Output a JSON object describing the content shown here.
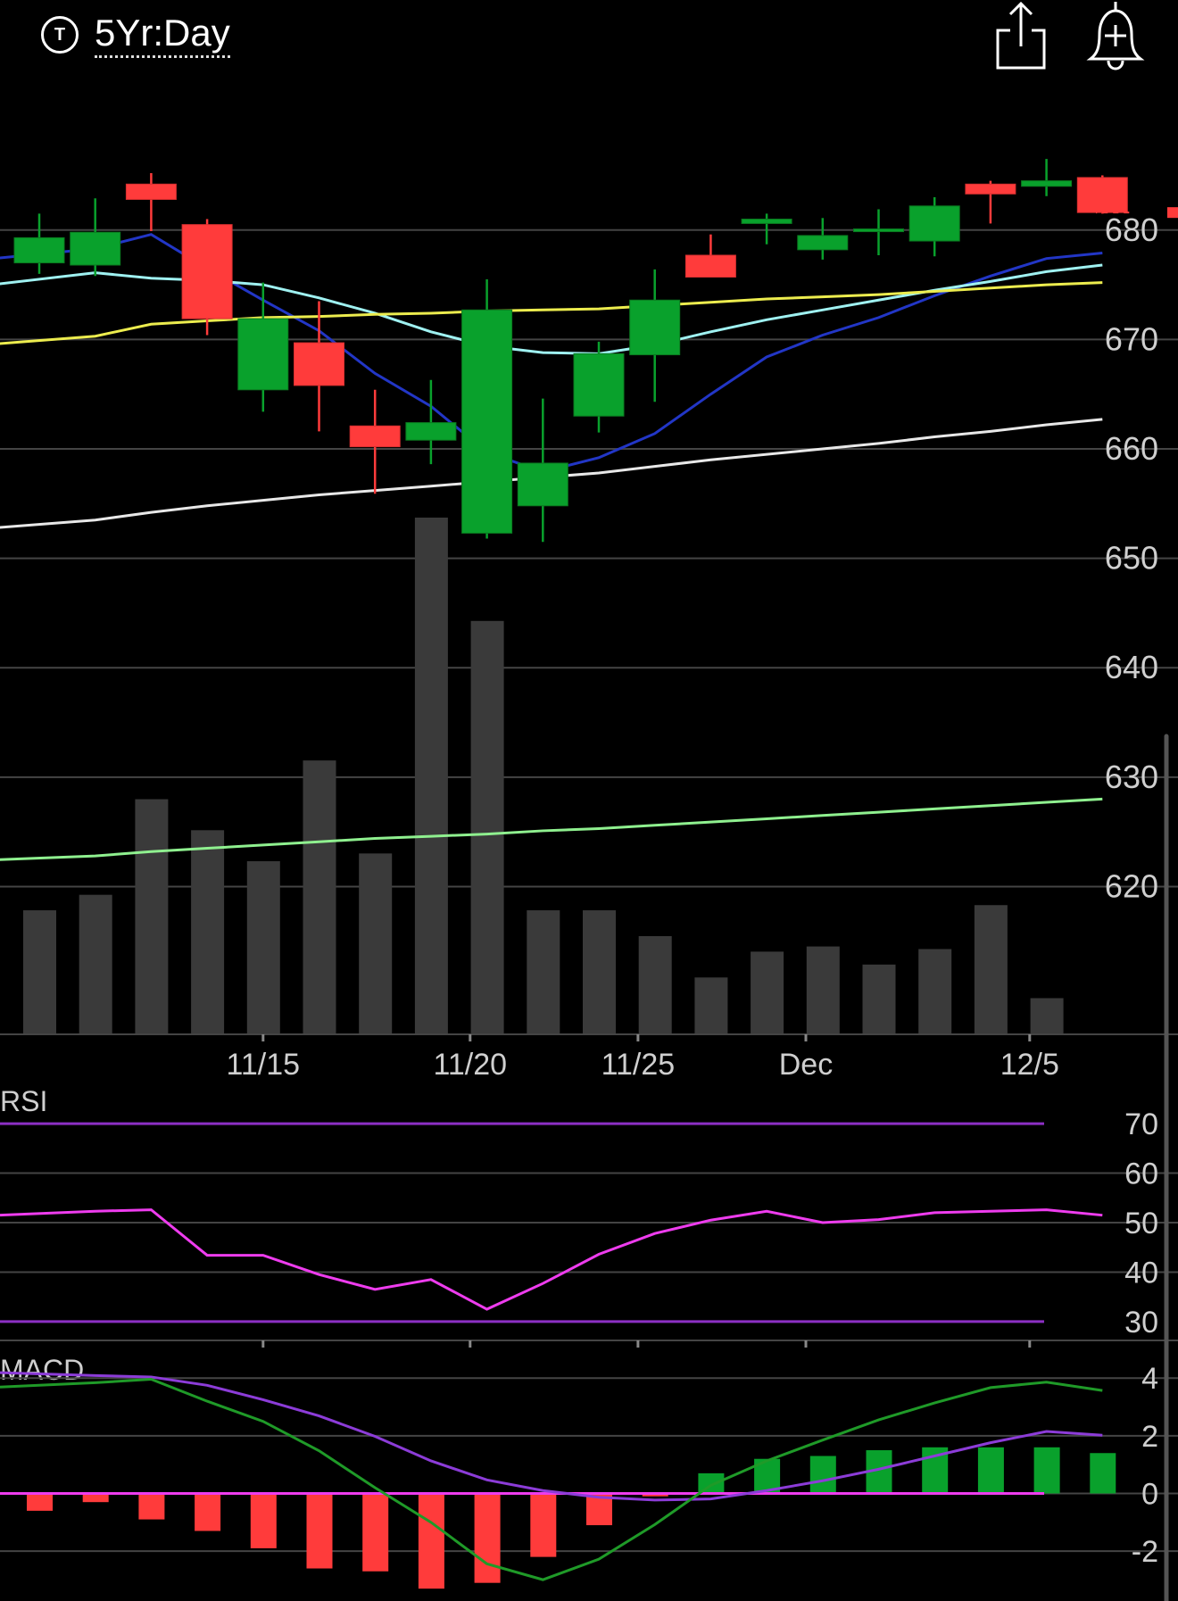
{
  "header": {
    "ticker_badge": "T",
    "timeframe": "5Yr:Day",
    "share_icon": "share-icon",
    "alert_icon": "bell-plus-icon"
  },
  "colors": {
    "up": "#09a12c",
    "down": "#ff3b3b",
    "volume": "#3a3a3a",
    "ma_blue": "#2236c6",
    "ma_cyan": "#9ff1f1",
    "ma_yellow": "#ecec4e",
    "ma_white": "#e8e8e8",
    "ma_green": "#8ff08f",
    "rsi": "#ee3cee",
    "rsi_bands": "#8c2fc4",
    "macd_line": "#1f9a28",
    "macd_signal": "#8c3cd8",
    "grid": "#444444",
    "axis_text": "#cfcfcf"
  },
  "chart_data": [
    {
      "type": "candlestick",
      "title": "",
      "ylim": [
        606.5,
        694.5
      ],
      "yticks": [
        620,
        630,
        640,
        650,
        660,
        670,
        680
      ],
      "xtick_labels": [
        {
          "label": "11/15",
          "slot": 4
        },
        {
          "label": "11/20",
          "slot": 7.7
        },
        {
          "label": "11/25",
          "slot": 10.7
        },
        {
          "label": "Dec",
          "slot": 13.7
        },
        {
          "label": "12/5",
          "slot": 17.7
        }
      ],
      "candles": [
        {
          "open": 677.0,
          "high": 681.5,
          "low": 676.0,
          "close": 679.3
        },
        {
          "open": 676.8,
          "high": 682.9,
          "low": 675.8,
          "close": 679.8
        },
        {
          "open": 684.2,
          "high": 685.2,
          "low": 679.9,
          "close": 682.8
        },
        {
          "open": 680.5,
          "high": 681.0,
          "low": 670.4,
          "close": 671.9
        },
        {
          "open": 665.4,
          "high": 675.2,
          "low": 663.4,
          "close": 671.9
        },
        {
          "open": 669.7,
          "high": 673.5,
          "low": 661.6,
          "close": 665.8
        },
        {
          "open": 662.1,
          "high": 665.4,
          "low": 655.9,
          "close": 660.2
        },
        {
          "open": 660.8,
          "high": 666.3,
          "low": 658.6,
          "close": 662.4
        },
        {
          "open": 652.3,
          "high": 675.5,
          "low": 651.8,
          "close": 672.7
        },
        {
          "open": 654.8,
          "high": 664.6,
          "low": 651.5,
          "close": 658.7
        },
        {
          "open": 663.0,
          "high": 669.8,
          "low": 661.5,
          "close": 668.7
        },
        {
          "open": 668.6,
          "high": 676.4,
          "low": 664.3,
          "close": 673.6
        },
        {
          "open": 677.7,
          "high": 679.6,
          "low": 676.5,
          "close": 675.7
        },
        {
          "open": 680.6,
          "high": 681.5,
          "low": 678.7,
          "close": 681.0
        },
        {
          "open": 678.2,
          "high": 681.1,
          "low": 677.3,
          "close": 679.5
        },
        {
          "open": 680.0,
          "high": 681.9,
          "low": 677.7,
          "close": 680.1
        },
        {
          "open": 679.0,
          "high": 683.0,
          "low": 677.6,
          "close": 682.2
        },
        {
          "open": 684.2,
          "high": 684.5,
          "low": 680.6,
          "close": 683.3
        },
        {
          "open": 684.0,
          "high": 686.5,
          "low": 683.1,
          "close": 684.5
        },
        {
          "open": 684.8,
          "high": 685.0,
          "low": 681.5,
          "close": 681.6
        }
      ],
      "last_price_marker": 681.6,
      "moving_averages": [
        {
          "color_key": "ma_blue",
          "values": [
            677.3,
            678.3,
            679.6,
            676.5,
            673.6,
            670.8,
            666.9,
            663.9,
            659.7,
            657.9,
            659.2,
            661.4,
            665.0,
            668.4,
            670.4,
            672.0,
            674.0,
            675.8,
            677.4,
            677.9
          ]
        },
        {
          "color_key": "ma_cyan",
          "values": [
            674.9,
            676.1,
            675.6,
            675.4,
            675.0,
            673.8,
            672.4,
            670.7,
            669.4,
            668.8,
            668.7,
            669.5,
            670.7,
            671.8,
            672.7,
            673.6,
            674.5,
            675.3,
            676.2,
            676.8
          ]
        },
        {
          "color_key": "ma_yellow",
          "values": [
            669.5,
            670.3,
            671.4,
            671.7,
            672.0,
            672.1,
            672.3,
            672.4,
            672.6,
            672.7,
            672.8,
            673.1,
            673.4,
            673.7,
            673.9,
            674.1,
            674.4,
            674.7,
            675.0,
            675.2
          ]
        },
        {
          "color_key": "ma_white",
          "values": [
            652.7,
            653.5,
            654.2,
            654.8,
            655.3,
            655.8,
            656.2,
            656.6,
            657.0,
            657.4,
            657.8,
            658.4,
            659.0,
            659.5,
            660.0,
            660.5,
            661.1,
            661.6,
            662.2,
            662.7
          ]
        },
        {
          "color_key": "ma_green",
          "values": [
            622.4,
            622.8,
            623.2,
            623.5,
            623.8,
            624.1,
            624.4,
            624.6,
            624.8,
            625.1,
            625.3,
            625.6,
            625.9,
            626.2,
            626.5,
            626.8,
            627.1,
            627.4,
            627.7,
            628.0
          ]
        }
      ],
      "volume_relative": [
        0.24,
        0.27,
        0.455,
        0.395,
        0.335,
        0.53,
        0.35,
        1.0,
        0.8,
        0.24,
        0.24,
        0.19,
        0.11,
        0.16,
        0.17,
        0.135,
        0.165,
        0.25,
        0.07,
        0.0
      ]
    },
    {
      "type": "line",
      "title": "RSI",
      "ylim": [
        28,
        72
      ],
      "yticks": [
        30,
        40,
        50,
        60,
        70
      ],
      "bands": [
        30,
        70
      ],
      "values": [
        51.5,
        52.3,
        52.6,
        43.4,
        43.4,
        39.5,
        36.5,
        38.5,
        32.5,
        37.7,
        43.6,
        47.8,
        50.5,
        52.3,
        50.0,
        50.6,
        52.0,
        52.3,
        52.6,
        51.5
      ]
    },
    {
      "type": "bar",
      "title": "MACD",
      "ylim": [
        -4.1,
        4.1
      ],
      "yticks": [
        4,
        2,
        0,
        -2
      ],
      "histogram": [
        -0.6,
        -0.3,
        -0.9,
        -1.3,
        -1.9,
        -2.6,
        -2.7,
        -3.3,
        -3.1,
        -2.2,
        -1.1,
        -0.1,
        0.7,
        1.2,
        1.3,
        1.5,
        1.6,
        1.6,
        1.6,
        1.4
      ],
      "macd": [
        3.69,
        3.84,
        3.96,
        3.2,
        2.5,
        1.48,
        0.2,
        -1.0,
        -2.44,
        -2.99,
        -2.28,
        -1.08,
        0.28,
        1.13,
        1.85,
        2.55,
        3.14,
        3.67,
        3.86,
        3.57
      ],
      "signal": [
        4.19,
        4.09,
        4.04,
        3.75,
        3.25,
        2.69,
        1.98,
        1.13,
        0.47,
        0.1,
        -0.13,
        -0.23,
        -0.19,
        0.1,
        0.44,
        0.84,
        1.3,
        1.76,
        2.15,
        2.02
      ]
    }
  ]
}
